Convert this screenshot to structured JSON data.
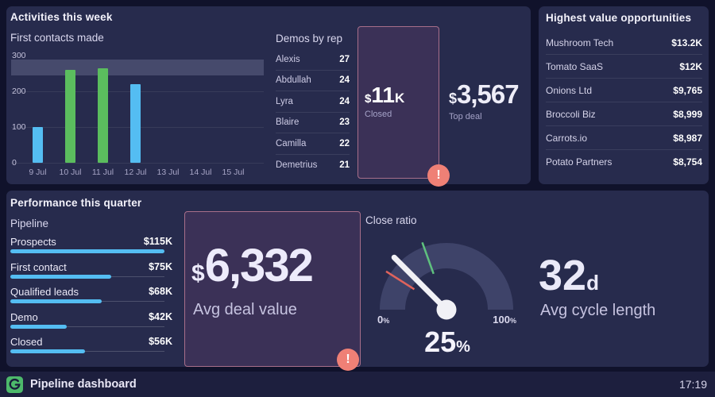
{
  "colors": {
    "page_bg": "#10122b",
    "panel_bg": "#272b4d",
    "highlight_bg": "#3b3157",
    "highlight_border": "#a86f8a",
    "alert": "#ef8076",
    "text_primary": "#f3f2fb",
    "text_muted": "#a5a3c8",
    "text_soft": "#cecce6",
    "blue": "#54bdf2",
    "green": "#5bbd5e",
    "band": "#4a4e70",
    "gauge_arc": "#3e4369",
    "needle": "#f1f1f6",
    "footer_bg": "#1d1f3e",
    "brand_green": "#4db96b"
  },
  "icons": {
    "alert_glyph": "!",
    "logo": "geckoboard-swirl"
  },
  "activities_panel": {
    "title": "Activities this week",
    "bar_chart": {
      "title": "First contacts made",
      "y_max": 300,
      "y_ticks": [
        300,
        200,
        100,
        0
      ],
      "gridlines": [
        200,
        100,
        0
      ],
      "goal_band": [
        244,
        290
      ],
      "categories": [
        "9 Jul",
        "10 Jul",
        "11 Jul",
        "12 Jul",
        "13 Jul",
        "14 Jul",
        "15 Jul"
      ],
      "values": [
        100,
        260,
        265,
        220,
        null,
        null,
        null
      ],
      "bar_colors": [
        "blue",
        "green",
        "green",
        "blue",
        null,
        null,
        null
      ]
    },
    "demos": {
      "title": "Demos by rep",
      "rows": [
        {
          "name": "Alexis",
          "value": 27
        },
        {
          "name": "Abdullah",
          "value": 24
        },
        {
          "name": "Lyra",
          "value": 24
        },
        {
          "name": "Blaire",
          "value": 23
        },
        {
          "name": "Camilla",
          "value": 22
        },
        {
          "name": "Demetrius",
          "value": 21
        }
      ]
    },
    "closed": {
      "prefix": "$",
      "value": "11",
      "suffix": "K",
      "label": "Closed",
      "alert": true
    },
    "top_deal": {
      "prefix": "$",
      "value": "3,567",
      "label": "Top deal"
    }
  },
  "opportunities_panel": {
    "title": "Highest value opportunities",
    "rows": [
      {
        "name": "Mushroom Tech",
        "value": "$13.2K"
      },
      {
        "name": "Tomato SaaS",
        "value": "$12K"
      },
      {
        "name": "Onions Ltd",
        "value": "$9,765"
      },
      {
        "name": "Broccoli Biz",
        "value": "$8,999"
      },
      {
        "name": "Carrots.io",
        "value": "$8,987"
      },
      {
        "name": "Potato Partners",
        "value": "$8,754"
      }
    ]
  },
  "performance_panel": {
    "title": "Performance this quarter",
    "pipeline": {
      "title": "Pipeline",
      "max_amount": 115,
      "stages": [
        {
          "label": "Prospects",
          "value": "$115K",
          "amount": 115
        },
        {
          "label": "First contact",
          "value": "$75K",
          "amount": 75
        },
        {
          "label": "Qualified leads",
          "value": "$68K",
          "amount": 68
        },
        {
          "label": "Demo",
          "value": "$42K",
          "amount": 42
        },
        {
          "label": "Closed",
          "value": "$56K",
          "amount": 56
        }
      ]
    },
    "avg_deal": {
      "prefix": "$",
      "value": "6,332",
      "label": "Avg deal value",
      "alert": true
    },
    "close_ratio": {
      "title": "Close ratio",
      "value": 25,
      "display_value": "25",
      "unit": "%",
      "min_label": "0",
      "max_label": "100",
      "ticks": [
        {
          "pct": 18,
          "color": "#e0635c"
        },
        {
          "pct": 39,
          "color": "#5fc17e"
        }
      ]
    },
    "cycle": {
      "value": "32",
      "suffix": "d",
      "label": "Avg cycle length"
    }
  },
  "footer": {
    "title": "Pipeline dashboard",
    "time": "17:19"
  },
  "chart_data": [
    {
      "type": "bar",
      "panel": "Activities this week",
      "title": "First contacts made",
      "categories": [
        "9 Jul",
        "10 Jul",
        "11 Jul",
        "12 Jul",
        "13 Jul",
        "14 Jul",
        "15 Jul"
      ],
      "values": [
        100,
        260,
        265,
        220,
        null,
        null,
        null
      ],
      "bar_colors": [
        "#54bdf2",
        "#5bbd5e",
        "#5bbd5e",
        "#54bdf2",
        null,
        null,
        null
      ],
      "ylim": [
        0,
        300
      ],
      "y_ticks": [
        0,
        100,
        200,
        300
      ],
      "goal_band": [
        244,
        290
      ],
      "grid": true,
      "legend": false
    },
    {
      "type": "table",
      "title": "Demos by rep",
      "rows": [
        [
          "Alexis",
          27
        ],
        [
          "Abdullah",
          24
        ],
        [
          "Lyra",
          24
        ],
        [
          "Blaire",
          23
        ],
        [
          "Camilla",
          22
        ],
        [
          "Demetrius",
          21
        ]
      ]
    },
    {
      "type": "number",
      "title": "Closed",
      "value": "$11K",
      "alert": true
    },
    {
      "type": "number",
      "title": "Top deal",
      "value": "$3,567"
    },
    {
      "type": "table",
      "title": "Highest value opportunities",
      "rows": [
        [
          "Mushroom Tech",
          "$13.2K"
        ],
        [
          "Tomato SaaS",
          "$12K"
        ],
        [
          "Onions Ltd",
          "$9,765"
        ],
        [
          "Broccoli Biz",
          "$8,999"
        ],
        [
          "Carrots.io",
          "$8,987"
        ],
        [
          "Potato Partners",
          "$8,754"
        ]
      ]
    },
    {
      "type": "bar",
      "orientation": "horizontal",
      "panel": "Performance this quarter",
      "title": "Pipeline",
      "categories": [
        "Prospects",
        "First contact",
        "Qualified leads",
        "Demo",
        "Closed"
      ],
      "values": [
        115,
        75,
        68,
        42,
        56
      ],
      "value_labels": [
        "$115K",
        "$75K",
        "$68K",
        "$42K",
        "$56K"
      ],
      "unit": "K USD"
    },
    {
      "type": "number",
      "title": "Avg deal value",
      "value": "$6,332",
      "alert": true
    },
    {
      "type": "gauge",
      "title": "Close ratio",
      "value": 25,
      "unit": "%",
      "min": 0,
      "max": 100,
      "ticks": [
        {
          "pct": 18,
          "color": "#e0635c"
        },
        {
          "pct": 39,
          "color": "#5fc17e"
        }
      ]
    },
    {
      "type": "number",
      "title": "Avg cycle length",
      "value": "32d"
    }
  ]
}
